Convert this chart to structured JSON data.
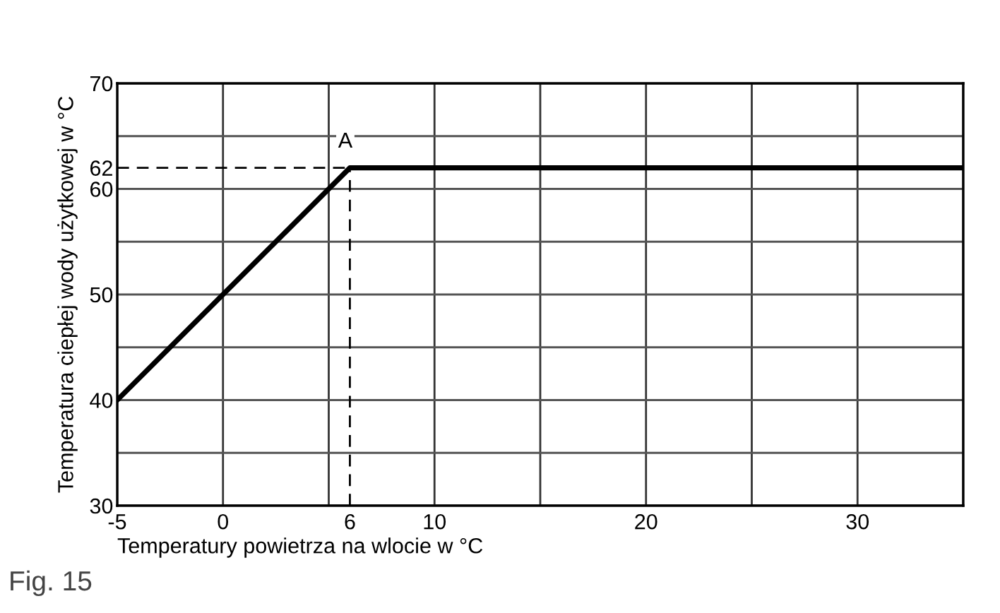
{
  "chart_data": {
    "type": "line",
    "xlabel": "Temperatury powietrza na wlocie w °C",
    "ylabel": "Temperatura ciepłej wody użytkowej w °C",
    "x": [
      -5,
      6,
      35
    ],
    "series": [
      {
        "color": "#000000",
        "values": [
          40,
          62,
          62
        ]
      }
    ],
    "xlim": [
      -5,
      35
    ],
    "ylim": [
      30,
      70
    ],
    "xticks": [
      -5,
      0,
      {
        "value": 5,
        "label": null
      },
      6,
      10,
      {
        "value": 15,
        "label": null
      },
      20,
      {
        "value": 25,
        "label": null
      },
      30,
      {
        "value": 35,
        "label": null
      }
    ],
    "yticks": [
      30,
      {
        "value": 35,
        "label": null
      },
      40,
      {
        "value": 45,
        "label": null
      },
      50,
      {
        "value": 55,
        "label": null
      },
      60,
      62,
      {
        "value": 65,
        "label": null
      },
      70
    ],
    "grid": true,
    "ref_lines": [
      {
        "axis": "x",
        "value": 6,
        "line_style": "dashed",
        "color": "#000000"
      },
      {
        "axis": "y",
        "value": 62,
        "line_style": "dashed",
        "color": "#000000"
      }
    ],
    "annotations": [
      {
        "text": "A",
        "x": 6,
        "y": 62
      },
      "Fig. 15"
    ]
  }
}
